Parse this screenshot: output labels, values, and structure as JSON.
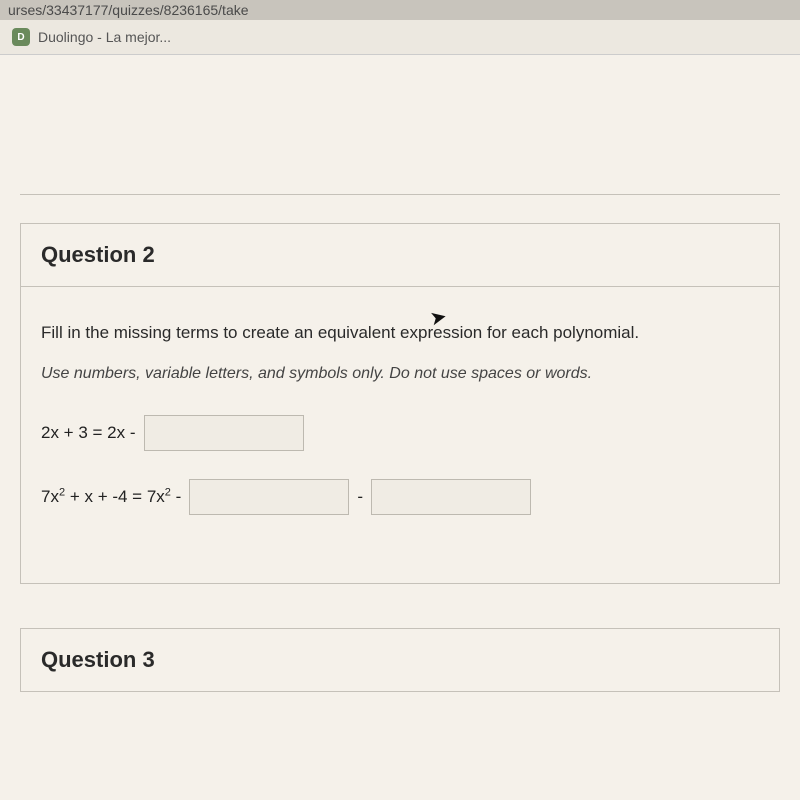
{
  "url_bar": "urses/33437177/quizzes/8236165/take",
  "bookmark": {
    "icon_text": "D",
    "label": "Duolingo - La mejor..."
  },
  "question2": {
    "title": "Question 2",
    "prompt": "Fill in the missing terms to create an equivalent expression for each polynomial.",
    "hint": "Use numbers, variable letters, and symbols only. Do not use spaces or words.",
    "eq1_left": "2x + 3 = 2x -",
    "eq2_prefix": "7x",
    "eq2_mid": " + x + -4 = 7x",
    "eq2_suffix": " -",
    "op_between": "-"
  },
  "question3": {
    "title": "Question 3"
  }
}
